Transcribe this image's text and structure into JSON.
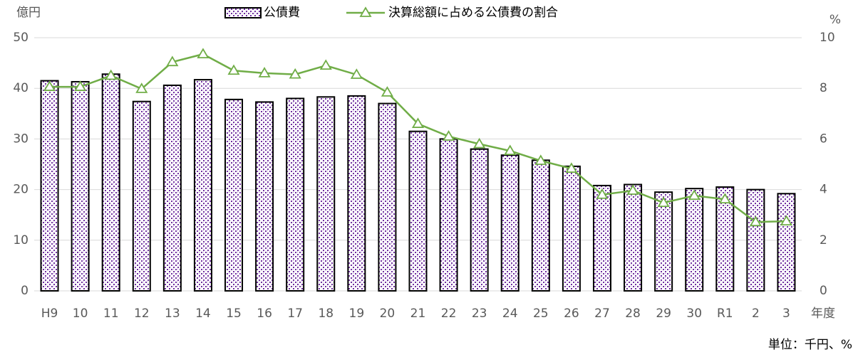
{
  "chart_data": {
    "type": "bar_line",
    "y_label": "億円",
    "y2_label": "%",
    "x_label": "年度",
    "note": "単位：千円、%",
    "categories": [
      "H9",
      "10",
      "11",
      "12",
      "13",
      "14",
      "15",
      "16",
      "17",
      "18",
      "19",
      "20",
      "21",
      "22",
      "23",
      "24",
      "25",
      "26",
      "27",
      "28",
      "29",
      "30",
      "R1",
      "2",
      "3"
    ],
    "series": [
      {
        "name": "公債費",
        "type": "bar",
        "color": "#7030a0",
        "values": [
          41.5,
          41.3,
          42.8,
          37.4,
          40.6,
          41.7,
          37.8,
          37.3,
          38.0,
          38.3,
          38.5,
          37.0,
          31.5,
          30.0,
          28.0,
          26.8,
          25.8,
          24.6,
          20.8,
          21.0,
          19.5,
          20.2,
          20.5,
          20.0,
          19.2
        ]
      },
      {
        "name": "決算総額に占める公債費の割合",
        "type": "line",
        "axis": "y2",
        "color": "#70ad47",
        "values": [
          8.06,
          8.06,
          8.5,
          7.98,
          9.04,
          9.35,
          8.7,
          8.6,
          8.55,
          8.9,
          8.54,
          7.84,
          6.6,
          6.1,
          5.8,
          5.53,
          5.14,
          4.83,
          3.8,
          3.96,
          3.48,
          3.76,
          3.62,
          2.72,
          2.75
        ]
      }
    ],
    "ylim": [
      0,
      50
    ],
    "yticks": [
      0,
      10,
      20,
      30,
      40,
      50
    ],
    "y2lim": [
      0,
      10
    ],
    "y2ticks": [
      0,
      2,
      4,
      6,
      8,
      10
    ],
    "grid": true,
    "legend": "top"
  }
}
